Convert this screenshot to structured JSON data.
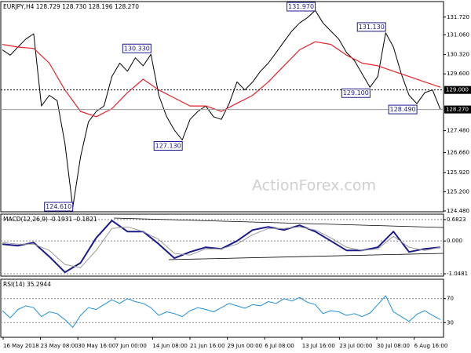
{
  "chart_data": [
    {
      "type": "line",
      "title": "EURJPY,H4 128.729 128.730 128.196 128.270",
      "watermark": "ActionForex.com",
      "ylim": [
        124.45,
        132.3
      ],
      "yticks": [
        {
          "value": 131.72,
          "label": "131.720"
        },
        {
          "value": 131.06,
          "label": "131.060"
        },
        {
          "value": 130.32,
          "label": "130.320"
        },
        {
          "value": 129.6,
          "label": "129.600"
        },
        {
          "value": 127.48,
          "label": "127.480"
        },
        {
          "value": 126.66,
          "label": "126.660"
        },
        {
          "value": 125.92,
          "label": "125.920"
        },
        {
          "value": 125.2,
          "label": "125.200"
        },
        {
          "value": 124.48,
          "label": "124.480"
        }
      ],
      "levels": [
        {
          "value": 129.0,
          "label": "129.000",
          "dash": true
        },
        {
          "value": 128.27,
          "label": "128.270",
          "dash": false
        }
      ],
      "annotations": [
        {
          "value": 131.97,
          "label": "131.970"
        },
        {
          "value": 131.13,
          "label": "131.130"
        },
        {
          "value": 130.33,
          "label": "130.330"
        },
        {
          "value": 129.1,
          "label": "129.100"
        },
        {
          "value": 128.49,
          "label": "128.490"
        },
        {
          "value": 127.13,
          "label": "127.130"
        },
        {
          "value": 124.61,
          "label": "124.610"
        }
      ],
      "series": [
        {
          "color": "#000000",
          "width": 1,
          "values": [
            130.5,
            130.3,
            130.6,
            130.9,
            131.1,
            128.4,
            128.8,
            128.6,
            127.0,
            124.61,
            126.5,
            127.8,
            128.2,
            128.4,
            129.5,
            130.0,
            129.7,
            130.2,
            129.9,
            130.33,
            128.8,
            128.0,
            127.5,
            127.13,
            127.9,
            128.2,
            128.4,
            128.0,
            127.9,
            128.5,
            129.3,
            129.0,
            129.3,
            129.7,
            130.0,
            130.4,
            130.8,
            131.2,
            131.5,
            131.7,
            131.97,
            131.5,
            131.2,
            130.9,
            130.4,
            130.1,
            129.6,
            129.1,
            129.5,
            131.13,
            130.6,
            129.6,
            128.8,
            128.49,
            128.9,
            129.0,
            128.27
          ]
        },
        {
          "color": "#e8202a",
          "width": 1.2,
          "values": [
            130.7,
            130.6,
            130.55,
            130.0,
            129.0,
            128.2,
            128.0,
            128.3,
            128.9,
            129.4,
            129.0,
            128.7,
            128.4,
            128.4,
            128.2,
            128.5,
            128.8,
            129.3,
            129.9,
            130.5,
            130.8,
            130.7,
            130.3,
            130.0,
            129.9,
            129.7,
            129.5,
            129.3,
            129.1
          ]
        }
      ]
    },
    {
      "type": "line",
      "title": "MACD(12,26,9) -0.1931 -0.1821",
      "ylim": [
        -1.1223,
        0.8554
      ],
      "yticks": [
        0.6823,
        {
          "value": 0,
          "label": "0.000"
        },
        -1.0481
      ],
      "tick_lines": true,
      "series": [
        {
          "color": "#1a1a8c",
          "width": 2,
          "values": [
            -0.1,
            -0.15,
            -0.05,
            -0.5,
            -1.0,
            -0.7,
            0.1,
            0.65,
            0.3,
            0.3,
            -0.1,
            -0.55,
            -0.35,
            -0.2,
            -0.25,
            0.0,
            0.35,
            0.45,
            0.35,
            0.5,
            0.3,
            0.0,
            -0.3,
            -0.3,
            -0.2,
            0.3,
            -0.35,
            -0.25,
            -0.2
          ]
        },
        {
          "color": "#9a9a9a",
          "width": 1,
          "values": [
            -0.05,
            -0.1,
            -0.1,
            -0.3,
            -0.75,
            -0.85,
            -0.3,
            0.4,
            0.45,
            0.3,
            0.05,
            -0.4,
            -0.45,
            -0.25,
            -0.25,
            -0.1,
            0.2,
            0.4,
            0.4,
            0.45,
            0.35,
            0.1,
            -0.2,
            -0.3,
            -0.25,
            0.15,
            -0.2,
            -0.3,
            -0.2
          ]
        }
      ]
    },
    {
      "type": "line",
      "title": "RSI(14) 35.2944",
      "ylim": [
        5.5,
        102.3
      ],
      "yticks": [
        70,
        30
      ],
      "tick_lines": true,
      "xtick_labels": [
        "16 May 2018",
        "23 May 08:00",
        "30 May 16:00",
        "7 Jun 00:00",
        "14 Jun 08:00",
        "21 Jun 16:00",
        "29 Jun 00:00",
        "6 Jul 08:00",
        "13 Jul 16:00",
        "23 Jul 00:00",
        "30 Jul 08:00",
        "6 Aug 16:00"
      ],
      "series": [
        {
          "color": "#1e8fd8",
          "width": 1,
          "values": [
            50,
            38,
            52,
            58,
            55,
            40,
            48,
            45,
            35,
            22,
            42,
            55,
            52,
            60,
            68,
            62,
            70,
            65,
            62,
            55,
            42,
            48,
            45,
            40,
            50,
            55,
            52,
            48,
            55,
            62,
            58,
            54,
            60,
            58,
            65,
            62,
            70,
            66,
            72,
            64,
            60,
            45,
            50,
            48,
            42,
            45,
            40,
            46,
            60,
            75,
            48,
            40,
            32,
            44,
            50,
            42,
            35
          ]
        }
      ]
    }
  ]
}
